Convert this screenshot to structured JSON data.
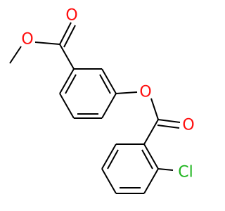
{
  "atoms": [
    {
      "label": "O"
    },
    {
      "label": "O"
    },
    {
      "label": "O"
    },
    {
      "label": "O"
    },
    {
      "label": "Cl"
    }
  ]
}
